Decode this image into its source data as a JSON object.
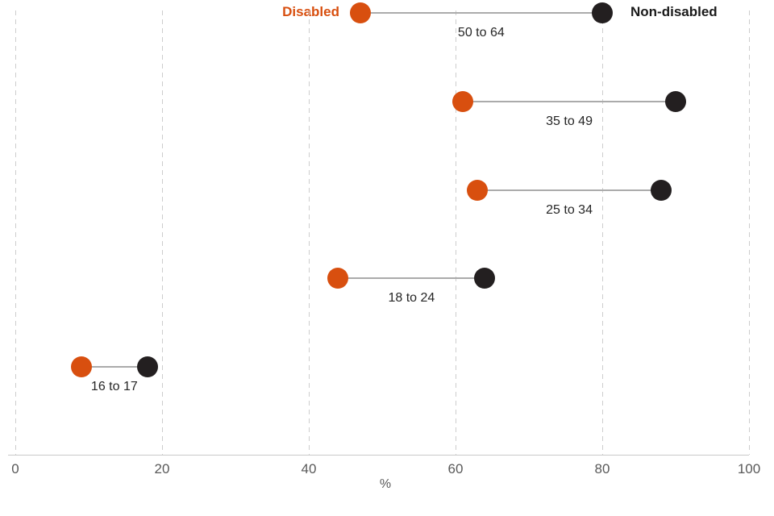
{
  "chart_data": {
    "type": "dumbbell",
    "categories": [
      "50 to 64",
      "35 to 49",
      "25 to 34",
      "18 to 24",
      "16 to 17"
    ],
    "series": [
      {
        "name": "Disabled",
        "color": "#D84F0F",
        "values": [
          47,
          61,
          63,
          44,
          9
        ]
      },
      {
        "name": "Non-disabled",
        "color": "#231F20",
        "values": [
          80,
          90,
          88,
          64,
          18
        ]
      }
    ],
    "xlabel": "%",
    "xlim": [
      0,
      100
    ],
    "xticks": [
      0,
      20,
      40,
      60,
      80,
      100
    ],
    "grid": "dashed-vertical",
    "legend_position": "inline-top-row",
    "colors": {
      "grid": "#CDCDCD",
      "axis_line": "#C9C9C9",
      "connector": "#ABABAB",
      "tick_text": "#595959",
      "category_text": "#262626"
    }
  }
}
